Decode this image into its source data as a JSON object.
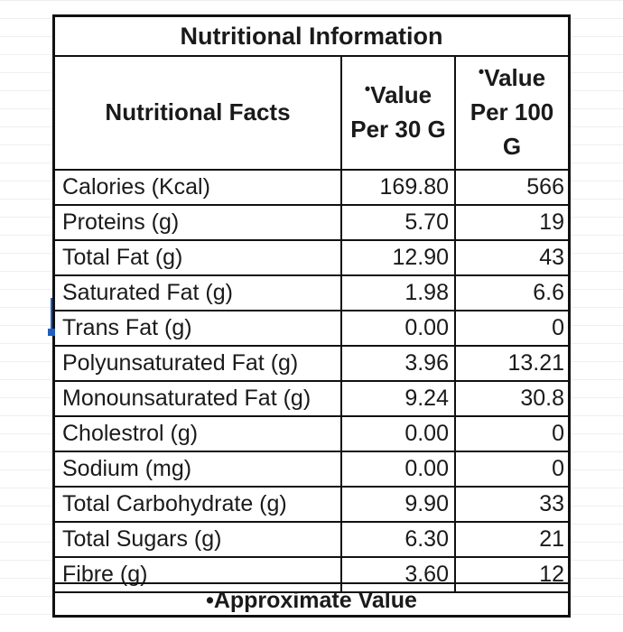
{
  "table": {
    "title": "Nutritional Information",
    "headers": {
      "facts": "Nutritional Facts",
      "per30": "Value Per 30 G",
      "per100": "Value Per 100 G",
      "marker": "•"
    },
    "rows": [
      {
        "name": "Calories (Kcal)",
        "per30": "169.80",
        "per100": "566"
      },
      {
        "name": "Proteins (g)",
        "per30": "5.70",
        "per100": "19"
      },
      {
        "name": "Total Fat (g)",
        "per30": "12.90",
        "per100": "43"
      },
      {
        "name": "Saturated Fat (g)",
        "per30": "1.98",
        "per100": "6.6"
      },
      {
        "name": "Trans Fat (g)",
        "per30": "0.00",
        "per100": "0"
      },
      {
        "name": "Polyunsaturated Fat (g)",
        "per30": "3.96",
        "per100": "13.21"
      },
      {
        "name": "Monounsaturated Fat (g)",
        "per30": "9.24",
        "per100": "30.8"
      },
      {
        "name": "Cholestrol (g)",
        "per30": "0.00",
        "per100": "0"
      },
      {
        "name": "Sodium  (mg)",
        "per30": "0.00",
        "per100": "0"
      },
      {
        "name": "Total Carbohydrate (g)",
        "per30": "9.90",
        "per100": "33"
      },
      {
        "name": "Total Sugars (g)",
        "per30": "6.30",
        "per100": "21"
      },
      {
        "name": "Fibre (g)",
        "per30": "3.60",
        "per100": "12"
      }
    ],
    "footer": "•Approximate Value"
  }
}
